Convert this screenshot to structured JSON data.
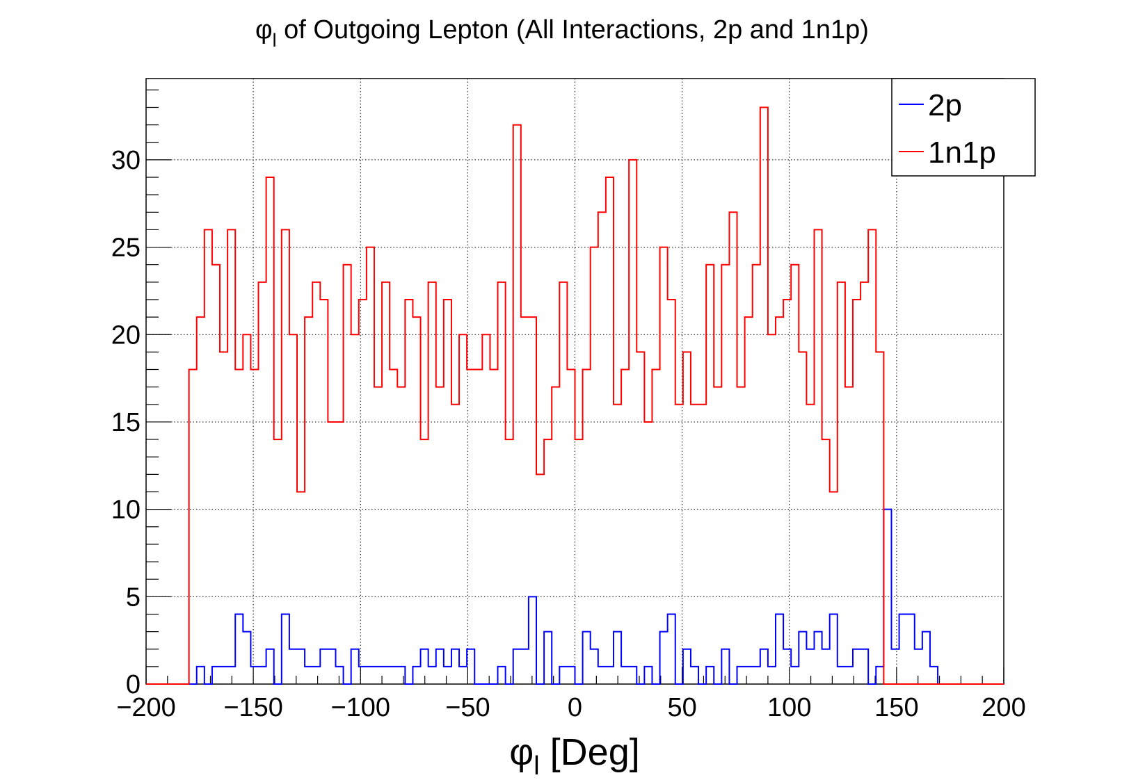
{
  "chart_data": {
    "type": "histogram",
    "title": {
      "sym": "φ",
      "sub": "l",
      "rest": " of Outgoing Lepton (All Interactions, 2p and 1n1p)"
    },
    "xlabel": {
      "sym": "φ",
      "sub": "l",
      "rest": " [Deg]"
    },
    "ylabel": "",
    "xlim": [
      -200,
      200
    ],
    "ylim": [
      0,
      34.65
    ],
    "x_ticks": [
      -200,
      -150,
      -100,
      -50,
      0,
      50,
      100,
      150,
      200
    ],
    "x_tick_labels": [
      "−200",
      "−150",
      "−100",
      "−50",
      "0",
      "50",
      "100",
      "150",
      "200"
    ],
    "y_ticks": [
      0,
      5,
      10,
      15,
      20,
      25,
      30
    ],
    "y_tick_labels": [
      "0",
      "5",
      "10",
      "15",
      "20",
      "25",
      "30"
    ],
    "grid": true,
    "legend_position": "top-right",
    "bin_width": 3.6,
    "bin_start": -180,
    "series": [
      {
        "name": "2p",
        "color": "#0000ff",
        "values": [
          0,
          1,
          0,
          1,
          1,
          1,
          4,
          3,
          1,
          1,
          2,
          0,
          4,
          2,
          2,
          1,
          1,
          2,
          2,
          1,
          0,
          2,
          1,
          1,
          1,
          1,
          1,
          1,
          0,
          1,
          2,
          1,
          2,
          1,
          2,
          1,
          2,
          0,
          0,
          0,
          1,
          0,
          2,
          2,
          5,
          0,
          3,
          0,
          1,
          1,
          0,
          3,
          2,
          1,
          1,
          3,
          1,
          1,
          0,
          1,
          0,
          3,
          4,
          0,
          2,
          1,
          0,
          1,
          0,
          2,
          0,
          1,
          1,
          1,
          2,
          1,
          4,
          2,
          1,
          3,
          2,
          3,
          2,
          4,
          1,
          1,
          2,
          2,
          0,
          1,
          10,
          2,
          4,
          4,
          2,
          3,
          1,
          0,
          0,
          0
        ]
      },
      {
        "name": "1n1p",
        "color": "#ff0000",
        "values": [
          18,
          21,
          26,
          24,
          19,
          26,
          18,
          20,
          18,
          23,
          29,
          14,
          26,
          20,
          11,
          21,
          23,
          22,
          15,
          15,
          24,
          20,
          22,
          25,
          17,
          23,
          18,
          17,
          22,
          21,
          14,
          23,
          17,
          22,
          16,
          20,
          18,
          18,
          20,
          18,
          23,
          14,
          32,
          21,
          21,
          12,
          14,
          17,
          23,
          18,
          14,
          18,
          25,
          27,
          29,
          16,
          18,
          30,
          19,
          15,
          18,
          25,
          22,
          16,
          19,
          16,
          16,
          24,
          17,
          24,
          27,
          17,
          21,
          24,
          33,
          20,
          21,
          22,
          24,
          19,
          16,
          26,
          14,
          11,
          23,
          17,
          22,
          23,
          26,
          19,
          0,
          0,
          0,
          0,
          0,
          0,
          0,
          0,
          0,
          0
        ]
      }
    ]
  }
}
